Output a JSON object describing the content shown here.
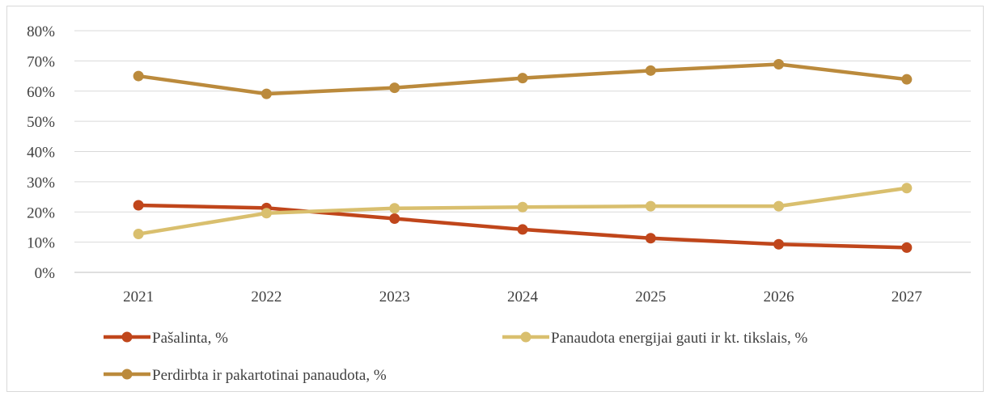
{
  "chart_data": {
    "type": "line",
    "title": "",
    "xlabel": "",
    "ylabel": "",
    "categories": [
      "2021",
      "2022",
      "2023",
      "2024",
      "2025",
      "2026",
      "2027"
    ],
    "ylim": [
      0,
      80
    ],
    "yticks": [
      0,
      10,
      20,
      30,
      40,
      50,
      60,
      70,
      80
    ],
    "ytick_labels": [
      "0%",
      "10%",
      "20%",
      "30%",
      "40%",
      "50%",
      "60%",
      "70%",
      "80%"
    ],
    "grid": true,
    "legend_position": "bottom",
    "series": [
      {
        "name": "Pašalinta, %",
        "color": "#c0461b",
        "values": [
          22.2,
          21.3,
          17.8,
          14.2,
          11.3,
          9.3,
          8.2
        ]
      },
      {
        "name": "Panaudota energijai gauti ir kt. tikslais, %",
        "color": "#d9bf6e",
        "values": [
          12.7,
          19.6,
          21.2,
          21.6,
          21.9,
          21.9,
          27.9
        ]
      },
      {
        "name": "Perdirbta ir pakartotinai panaudota, %",
        "color": "#bb8a3c",
        "values": [
          65.0,
          59.1,
          61.1,
          64.3,
          66.8,
          68.9,
          63.9
        ]
      }
    ]
  }
}
